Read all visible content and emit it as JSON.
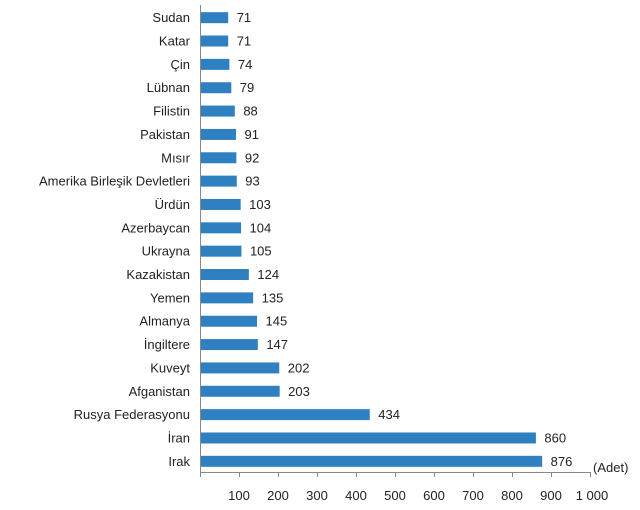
{
  "chart_data": {
    "type": "bar",
    "orientation": "horizontal",
    "categories": [
      "Sudan",
      "Katar",
      "Çin",
      "Lübnan",
      "Filistin",
      "Pakistan",
      "Mısır",
      "Amerika Birleşik Devletleri",
      "Ürdün",
      "Azerbaycan",
      "Ukrayna",
      "Kazakistan",
      "Yemen",
      "Almanya",
      "İngiltere",
      "Kuveyt",
      "Afganistan",
      "Rusya Federasyonu",
      "İran",
      "Irak"
    ],
    "values": [
      71,
      71,
      74,
      79,
      88,
      91,
      92,
      93,
      103,
      104,
      105,
      124,
      135,
      145,
      147,
      202,
      203,
      434,
      860,
      876
    ],
    "value_labels": [
      "71",
      "71",
      "74",
      "79",
      "88",
      "91",
      "92",
      "93",
      "103",
      "104",
      "105",
      "124",
      "135",
      "145",
      "147",
      "202",
      "203",
      "434",
      "860",
      "876"
    ],
    "xlim": [
      0,
      1000
    ],
    "x_ticks": [
      100,
      200,
      300,
      400,
      500,
      600,
      700,
      800,
      900,
      1000
    ],
    "x_tick_labels": [
      "100",
      "200",
      "300",
      "400",
      "500",
      "600",
      "700",
      "800",
      "900",
      "1 000"
    ],
    "x_unit": "(Adet)",
    "grid": false,
    "bar_color": "#2e80c1"
  }
}
